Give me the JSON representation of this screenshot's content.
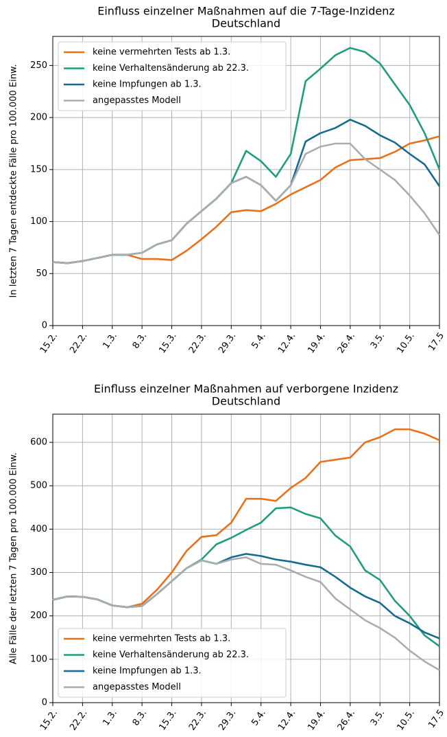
{
  "chart_data": [
    {
      "type": "line",
      "title": "Einfluss einzelner Maßnahmen auf die 7-Tage-Inzidenz",
      "subtitle": "Deutschland",
      "y_label": "In letzten 7 Tagen entdeckte Fälle pro 100.000 Einw.",
      "x": [
        0,
        3.5,
        7,
        10.5,
        14,
        17.5,
        21,
        24.5,
        28,
        31.5,
        35,
        38.5,
        42,
        45.5,
        49,
        52.5,
        56,
        59.5,
        63,
        66.5,
        70,
        73.5,
        77,
        80.5,
        84,
        87.5,
        91
      ],
      "xlim": [
        0,
        91
      ],
      "xticks": [
        {
          "value": 0,
          "label": "15.2."
        },
        {
          "value": 7,
          "label": "22.2."
        },
        {
          "value": 14,
          "label": "1.3."
        },
        {
          "value": 21,
          "label": "8.3."
        },
        {
          "value": 28,
          "label": "15.3."
        },
        {
          "value": 35,
          "label": "22.3."
        },
        {
          "value": 42,
          "label": "29.3."
        },
        {
          "value": 49,
          "label": "5.4."
        },
        {
          "value": 56,
          "label": "12.4."
        },
        {
          "value": 63,
          "label": "19.4."
        },
        {
          "value": 70,
          "label": "26.4."
        },
        {
          "value": 77,
          "label": "3.5."
        },
        {
          "value": 84,
          "label": "10.5."
        },
        {
          "value": 91,
          "label": "17.5"
        }
      ],
      "ylim": [
        0,
        278
      ],
      "yticks": [
        0,
        50,
        100,
        150,
        200,
        250
      ],
      "grid": true,
      "legend": "upper left",
      "series": [
        {
          "name": "keine vermehrten Tests ab 1.3.",
          "color": "#e8711a",
          "values": [
            61,
            60,
            62,
            65,
            68,
            68,
            64,
            64,
            63,
            72,
            83,
            95,
            109,
            111,
            110,
            117,
            126,
            133,
            140,
            152,
            159,
            160,
            161,
            167,
            175,
            178,
            182
          ]
        },
        {
          "name": "keine Verhaltensänderung ab 22.3.",
          "color": "#1f9e7f",
          "values": [
            61,
            60,
            62,
            65,
            68,
            68,
            70,
            78,
            82,
            98,
            110,
            122,
            137,
            168,
            158,
            143,
            165,
            235,
            247,
            260,
            267,
            263,
            252,
            232,
            212,
            185,
            150
          ]
        },
        {
          "name": "keine Impfungen ab 1.3.",
          "color": "#156b8f",
          "values": [
            61,
            60,
            62,
            65,
            68,
            68,
            70,
            78,
            82,
            98,
            110,
            122,
            137,
            143,
            135,
            120,
            135,
            177,
            185,
            190,
            198,
            192,
            183,
            176,
            165,
            155,
            134
          ]
        },
        {
          "name": "angepasstes Modell",
          "color": "#a9adae",
          "values": [
            61,
            60,
            62,
            65,
            68,
            68,
            70,
            78,
            82,
            98,
            110,
            122,
            137,
            143,
            135,
            120,
            135,
            165,
            172,
            175,
            175,
            160,
            150,
            140,
            125,
            108,
            87
          ]
        }
      ]
    },
    {
      "type": "line",
      "title": "Einfluss einzelner Maßnahmen auf verborgene Inzidenz",
      "subtitle": "Deutschland",
      "y_label": "Alle Fälle der letzten 7 Tagen pro 100.000 Einw.",
      "x": [
        0,
        3.5,
        7,
        10.5,
        14,
        17.5,
        21,
        24.5,
        28,
        31.5,
        35,
        38.5,
        42,
        45.5,
        49,
        52.5,
        56,
        59.5,
        63,
        66.5,
        70,
        73.5,
        77,
        80.5,
        84,
        87.5,
        91
      ],
      "xlim": [
        0,
        91
      ],
      "xticks": [
        {
          "value": 0,
          "label": "15.2."
        },
        {
          "value": 7,
          "label": "22.2."
        },
        {
          "value": 14,
          "label": "1.3."
        },
        {
          "value": 21,
          "label": "8.3."
        },
        {
          "value": 28,
          "label": "15.3."
        },
        {
          "value": 35,
          "label": "22.3."
        },
        {
          "value": 42,
          "label": "29.3."
        },
        {
          "value": 49,
          "label": "5.4."
        },
        {
          "value": 56,
          "label": "12.4."
        },
        {
          "value": 63,
          "label": "19.4."
        },
        {
          "value": 70,
          "label": "26.4."
        },
        {
          "value": 77,
          "label": "3.5."
        },
        {
          "value": 84,
          "label": "10.5."
        },
        {
          "value": 91,
          "label": "17.5"
        }
      ],
      "ylim": [
        0,
        665
      ],
      "yticks": [
        0,
        100,
        200,
        300,
        400,
        500,
        600
      ],
      "grid": true,
      "legend": "lower left",
      "series": [
        {
          "name": "keine vermehrten Tests ab 1.3.",
          "color": "#e8711a",
          "values": [
            237,
            245,
            244,
            238,
            224,
            220,
            228,
            260,
            300,
            350,
            382,
            386,
            415,
            470,
            470,
            465,
            495,
            518,
            555,
            560,
            565,
            600,
            612,
            630,
            630,
            620,
            605
          ]
        },
        {
          "name": "keine Verhaltensänderung ab 22.3.",
          "color": "#1f9e7f",
          "values": [
            237,
            245,
            244,
            238,
            224,
            220,
            223,
            250,
            280,
            310,
            330,
            365,
            380,
            398,
            415,
            448,
            450,
            435,
            425,
            385,
            360,
            305,
            283,
            235,
            200,
            155,
            130
          ]
        },
        {
          "name": "keine Impfungen ab 1.3.",
          "color": "#156b8f",
          "values": [
            237,
            245,
            244,
            238,
            224,
            220,
            223,
            250,
            280,
            310,
            328,
            320,
            335,
            343,
            338,
            330,
            325,
            318,
            312,
            290,
            265,
            245,
            230,
            200,
            183,
            162,
            148
          ]
        },
        {
          "name": "angepasstes Modell",
          "color": "#a9adae",
          "values": [
            237,
            245,
            244,
            238,
            224,
            220,
            223,
            250,
            280,
            310,
            328,
            320,
            330,
            335,
            320,
            318,
            305,
            290,
            278,
            240,
            215,
            190,
            172,
            150,
            120,
            95,
            75
          ]
        }
      ]
    }
  ]
}
